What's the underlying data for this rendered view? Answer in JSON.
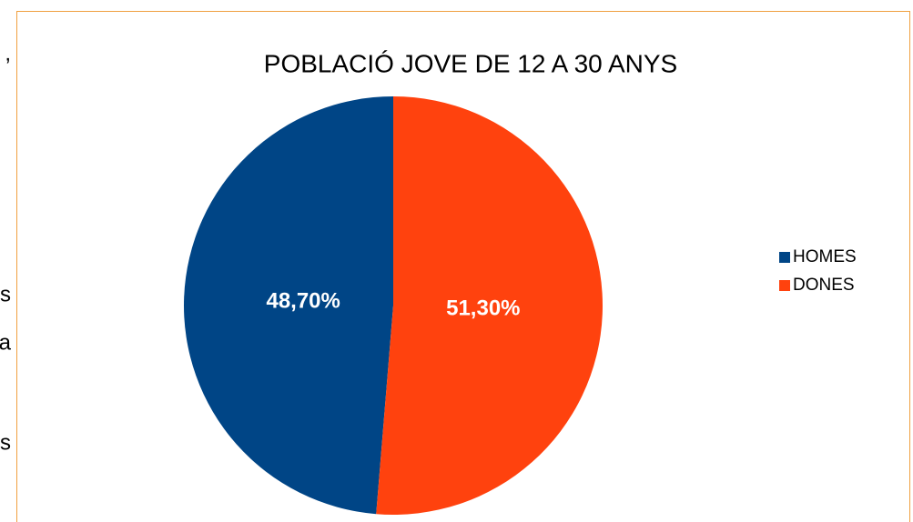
{
  "margin_text": [
    ",",
    "s",
    "a",
    "s"
  ],
  "chart_data": {
    "type": "pie",
    "title": "POBLACIÓ JOVE DE 12 A 30 ANYS",
    "categories": [
      "HOMES",
      "DONES"
    ],
    "values": [
      48.7,
      51.3
    ],
    "value_labels": [
      "48,70%",
      "51,30%"
    ],
    "colors": [
      "#004586",
      "#ff420e"
    ],
    "legend": "right"
  }
}
